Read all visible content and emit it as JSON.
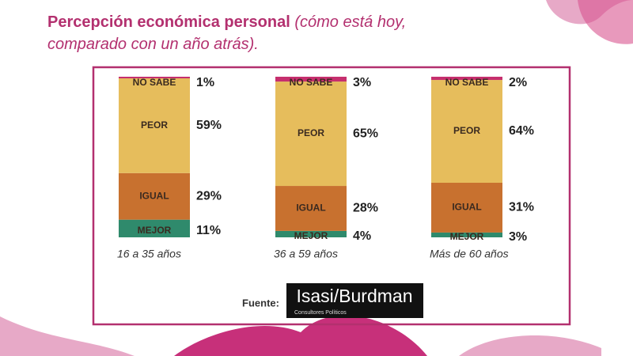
{
  "chart_data": {
    "type": "stacked_bar",
    "title": "Percepción económica personal",
    "subtitle": "(cómo está hoy, comparado con un año atrás).",
    "categories": [
      "16 a 35 años",
      "36 a 59 años",
      "Más de 60 años"
    ],
    "series": [
      {
        "name": "MEJOR",
        "color": "#2f8a6c",
        "values": [
          11,
          4,
          3
        ],
        "value_labels": [
          "11%",
          "4%",
          "3%"
        ]
      },
      {
        "name": "IGUAL",
        "color": "#c8712f",
        "values": [
          29,
          28,
          31
        ],
        "value_labels": [
          "29%",
          "28%",
          "31%"
        ]
      },
      {
        "name": "PEOR",
        "color": "#e6bd5c",
        "values": [
          59,
          65,
          64
        ],
        "value_labels": [
          "59%",
          "65%",
          "64%"
        ]
      },
      {
        "name": "NO SABE",
        "color": "#c62f6e",
        "values": [
          1,
          3,
          2
        ],
        "value_labels": [
          "1%",
          "3%",
          "2%"
        ]
      }
    ],
    "ylim": [
      0,
      100
    ],
    "source_label": "Fuente:",
    "logo_text": "Isasi/Burdman",
    "logo_subtitle": "Consultores Políticos"
  }
}
